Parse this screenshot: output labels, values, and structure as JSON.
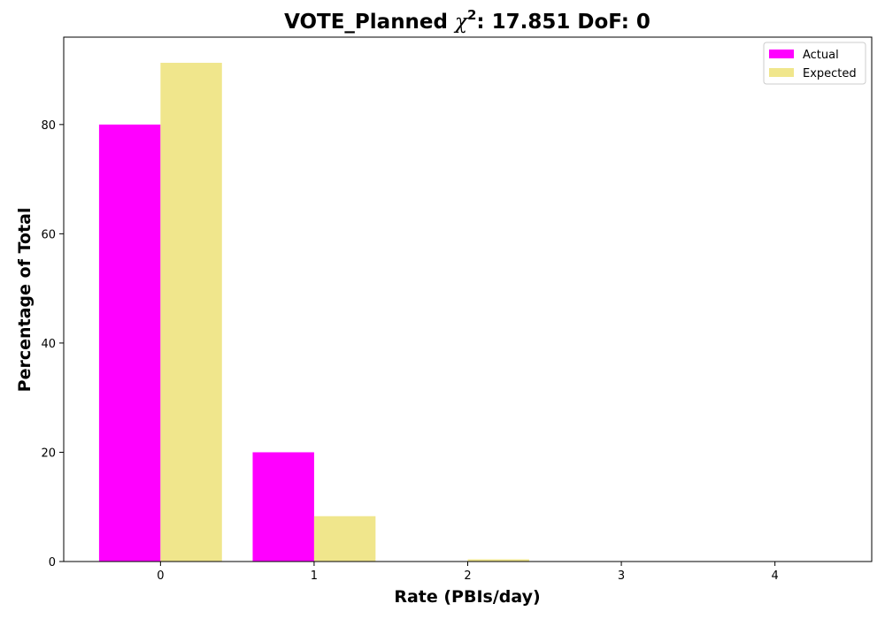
{
  "chart_data": {
    "type": "bar",
    "title_prefix": "VOTE_Planned ",
    "title_chi": "χ",
    "title_sup": "2",
    "title_suffix": ": 17.851 DoF: 0",
    "xlabel": "Rate (PBIs/day)",
    "ylabel": "Percentage of Total",
    "categories": [
      "0",
      "1",
      "2",
      "3",
      "4"
    ],
    "x": [
      0,
      1,
      2,
      3,
      4
    ],
    "xlim": [
      -0.63,
      4.63
    ],
    "ylim": [
      0,
      96.0
    ],
    "yticks": [
      0,
      20,
      40,
      60,
      80
    ],
    "grid": false,
    "legend_position": "top-right",
    "series": [
      {
        "name": "Actual",
        "color": "#ff00ff",
        "values": [
          80.0,
          20.0,
          0.0,
          0.0,
          0.0
        ]
      },
      {
        "name": "Expected",
        "color": "#f0e68c",
        "values": [
          91.3,
          8.3,
          0.4,
          0.0,
          0.0
        ]
      }
    ]
  }
}
